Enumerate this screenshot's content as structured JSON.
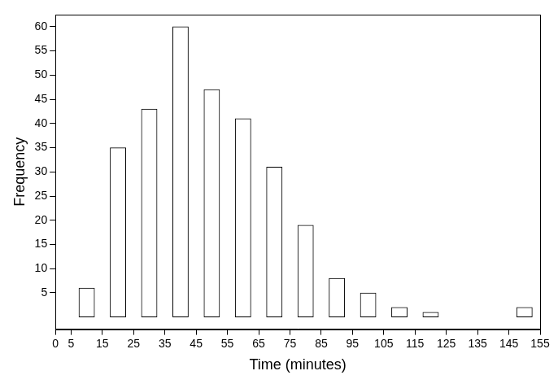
{
  "chart_data": {
    "type": "histogram",
    "x_label": "Time (minutes)",
    "y_label": "Frequency",
    "bins": [
      5,
      15,
      25,
      35,
      45,
      55,
      65,
      75,
      85,
      95,
      105,
      115,
      125,
      135,
      145,
      155
    ],
    "values": [
      6,
      35,
      43,
      60,
      47,
      41,
      31,
      19,
      8,
      5,
      2,
      1,
      0,
      0,
      2
    ],
    "color": "#ffffff",
    "xlim": [
      0,
      155
    ],
    "xticks": [
      0,
      5,
      15,
      25,
      35,
      45,
      55,
      65,
      75,
      85,
      95,
      105,
      115,
      125,
      135,
      145,
      155
    ],
    "ylim": [
      -2.5,
      62.5
    ],
    "yticks": [
      5,
      10,
      15,
      20,
      25,
      30,
      35,
      40,
      45,
      50,
      55,
      60
    ],
    "grid": false
  }
}
